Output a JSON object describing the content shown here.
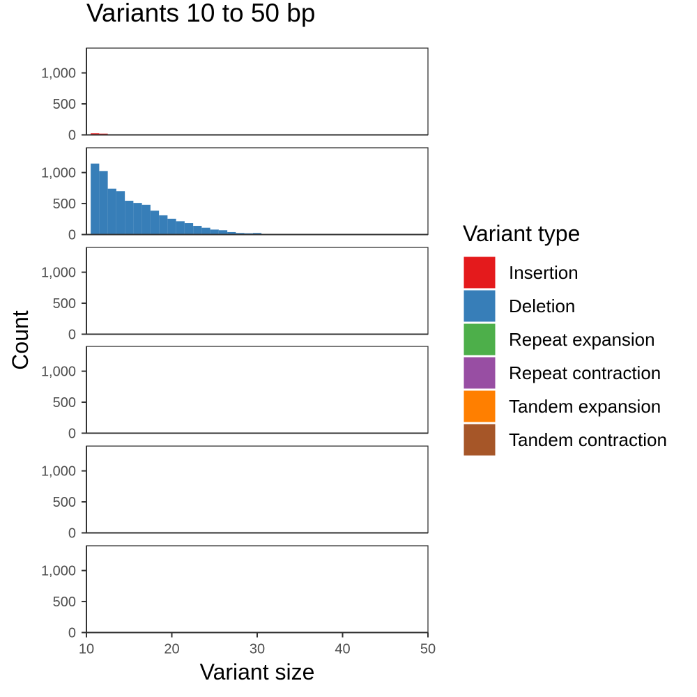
{
  "chart_data": {
    "type": "bar",
    "title": "Variants 10 to 50 bp",
    "xlabel": "Variant size",
    "ylabel": "Count",
    "xlim": [
      10,
      50
    ],
    "ylim": [
      0,
      1400
    ],
    "x_ticks": [
      10,
      20,
      30,
      40,
      50
    ],
    "x_tick_labels": [
      "10",
      "20",
      "30",
      "40",
      "50"
    ],
    "y_ticks": [
      0,
      500,
      1000
    ],
    "y_tick_labels": [
      "0",
      "500",
      "1,000"
    ],
    "grid": false,
    "facets": "stacked vertically, one panel per variant type, shared axes",
    "legend": {
      "title": "Variant type",
      "position": "right",
      "entries": [
        {
          "label": "Insertion",
          "color": "#e41a1c"
        },
        {
          "label": "Deletion",
          "color": "#377eb8"
        },
        {
          "label": "Repeat expansion",
          "color": "#4daf4a"
        },
        {
          "label": "Repeat contraction",
          "color": "#984ea3"
        },
        {
          "label": "Tandem expansion",
          "color": "#ff7f00"
        },
        {
          "label": "Tandem contraction",
          "color": "#a65628"
        }
      ]
    },
    "bin_width": 1,
    "series": [
      {
        "name": "Insertion",
        "color": "#e41a1c",
        "x": [
          11,
          12
        ],
        "values": [
          25,
          20
        ]
      },
      {
        "name": "Deletion",
        "color": "#377eb8",
        "x": [
          11,
          12,
          13,
          14,
          15,
          16,
          17,
          18,
          19,
          20,
          21,
          22,
          23,
          24,
          25,
          26,
          27,
          28,
          29,
          30
        ],
        "values": [
          1145,
          1025,
          740,
          700,
          545,
          510,
          480,
          385,
          310,
          255,
          215,
          185,
          140,
          110,
          80,
          70,
          40,
          25,
          20,
          25
        ]
      },
      {
        "name": "Repeat expansion",
        "color": "#4daf4a",
        "x": [],
        "values": []
      },
      {
        "name": "Repeat contraction",
        "color": "#984ea3",
        "x": [],
        "values": []
      },
      {
        "name": "Tandem expansion",
        "color": "#ff7f00",
        "x": [],
        "values": []
      },
      {
        "name": "Tandem contraction",
        "color": "#a65628",
        "x": [],
        "values": []
      }
    ]
  }
}
